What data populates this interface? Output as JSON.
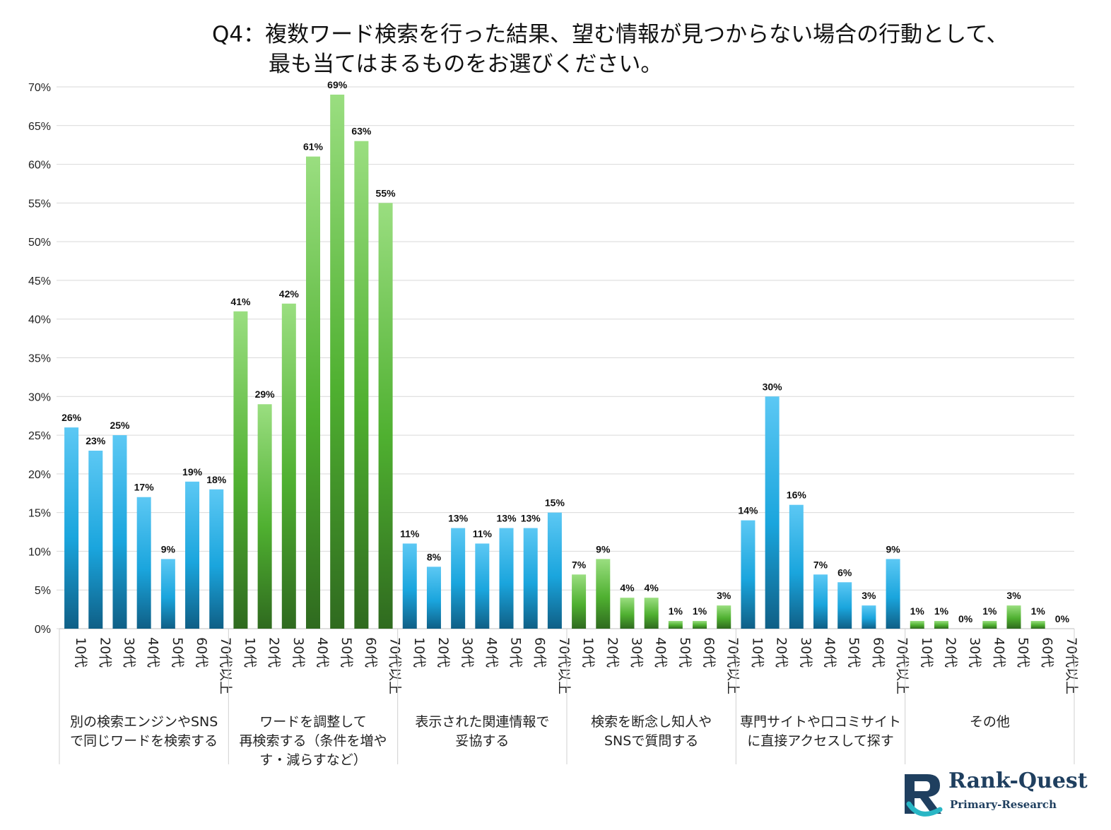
{
  "title_line1": "Q4：複数ワード検索を行った結果、望む情報が見つからない場合の行動として、",
  "title_line2": "最も当てはまるものをお選びください。",
  "logo": {
    "main": "Rank-Quest",
    "sub": "Primary-Research"
  },
  "colors": {
    "blue_top": "#5cc8f4",
    "blue_mid": "#1aa5dd",
    "blue_bottom": "#0f5f86",
    "green_top": "#9ade80",
    "green_mid": "#4fb030",
    "green_bottom": "#2f6a1f",
    "logo_teal": "#29b6c5",
    "logo_navy": "#1f3f5f"
  },
  "chart_data": {
    "type": "bar",
    "ylim": [
      0,
      70
    ],
    "yticks": [
      0,
      5,
      10,
      15,
      20,
      25,
      30,
      35,
      40,
      45,
      50,
      55,
      60,
      65,
      70
    ],
    "ytick_labels": [
      "0%",
      "5%",
      "10%",
      "15%",
      "20%",
      "25%",
      "30%",
      "35%",
      "40%",
      "45%",
      "50%",
      "55%",
      "60%",
      "65%",
      "70%"
    ],
    "age_labels": [
      "10代",
      "20代",
      "30代",
      "40代",
      "50代",
      "60代",
      "70代以上"
    ],
    "grid": true,
    "groups": [
      {
        "label": [
          "別の検索エンジンやSNS",
          "で同じワードを検索する"
        ],
        "color": "blue",
        "values": [
          26,
          23,
          25,
          17,
          9,
          19,
          18
        ],
        "value_labels": [
          "26%",
          "23%",
          "25%",
          "17%",
          "9%",
          "19%",
          "18%"
        ]
      },
      {
        "label": [
          "ワードを調整して",
          "再検索する（条件を増や",
          "す・減らすなど）"
        ],
        "color": "green",
        "values": [
          41,
          29,
          42,
          61,
          69,
          63,
          55
        ],
        "value_labels": [
          "41%",
          "29%",
          "42%",
          "61%",
          "69%",
          "63%",
          "55%"
        ]
      },
      {
        "label": [
          "表示された関連情報で",
          "妥協する"
        ],
        "color": "blue",
        "values": [
          11,
          8,
          13,
          11,
          13,
          13,
          15
        ],
        "value_labels": [
          "11%",
          "8%",
          "13%",
          "11%",
          "13%",
          "13%",
          "15%"
        ]
      },
      {
        "label": [
          "検索を断念し知人や",
          "SNSで質問する"
        ],
        "color": "green",
        "values": [
          7,
          9,
          4,
          4,
          1,
          1,
          3
        ],
        "value_labels": [
          "7%",
          "9%",
          "4%",
          "4%",
          "1%",
          "1%",
          "3%"
        ]
      },
      {
        "label": [
          "専門サイトや口コミサイト",
          "に直接アクセスして探す"
        ],
        "color": "blue",
        "values": [
          14,
          30,
          16,
          7,
          6,
          3,
          9
        ],
        "value_labels": [
          "14%",
          "30%",
          "16%",
          "7%",
          "6%",
          "3%",
          "9%"
        ]
      },
      {
        "label": [
          "その他"
        ],
        "color": "green",
        "values": [
          1,
          1,
          0,
          1,
          3,
          1,
          0
        ],
        "value_labels": [
          "1%",
          "1%",
          "0%",
          "1%",
          "3%",
          "1%",
          "0%"
        ]
      }
    ]
  }
}
